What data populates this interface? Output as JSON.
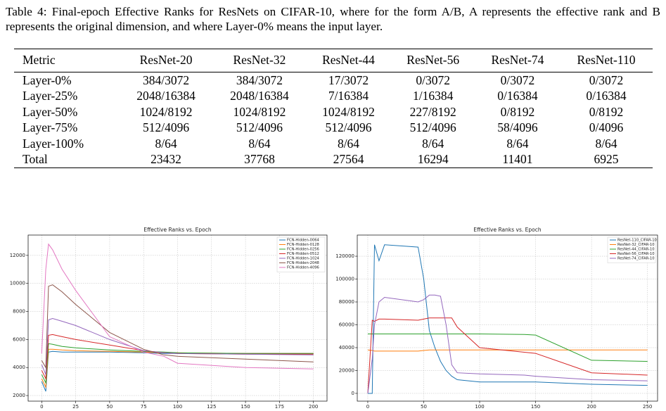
{
  "caption": "Table 4: Final-epoch Effective Ranks for ResNets on CIFAR-10, where for the form A/B, A represents the effective rank and B represents the original dimension, and where Layer-0% means the input layer.",
  "table": {
    "header": [
      "Metric",
      "ResNet-20",
      "ResNet-32",
      "ResNet-44",
      "ResNet-56",
      "ResNet-74",
      "ResNet-110"
    ],
    "rows": [
      [
        "Layer-0%",
        "384/3072",
        "384/3072",
        "17/3072",
        "0/3072",
        "0/3072",
        "0/3072"
      ],
      [
        "Layer-25%",
        "2048/16384",
        "2048/16384",
        "7/16384",
        "1/16384",
        "0/16384",
        "0/16384"
      ],
      [
        "Layer-50%",
        "1024/8192",
        "1024/8192",
        "1024/8192",
        "227/8192",
        "0/8192",
        "0/8192"
      ],
      [
        "Layer-75%",
        "512/4096",
        "512/4096",
        "512/4096",
        "512/4096",
        "58/4096",
        "0/4096"
      ],
      [
        "Layer-100%",
        "8/64",
        "8/64",
        "8/64",
        "8/64",
        "8/64",
        "8/64"
      ],
      [
        "Total",
        "23432",
        "37768",
        "27564",
        "16294",
        "11401",
        "6925"
      ]
    ]
  },
  "chart_data": [
    {
      "type": "line",
      "title": "Effective Ranks vs. Epoch",
      "x": [
        0,
        3,
        5,
        8,
        15,
        25,
        50,
        75,
        90,
        100,
        150,
        200
      ],
      "series": [
        {
          "name": "FCN-Hidden-0064",
          "color": "#1f77b4",
          "values": [
            3000,
            2300,
            5100,
            5150,
            5100,
            5100,
            5100,
            5050,
            5000,
            5000,
            5000,
            5000
          ]
        },
        {
          "name": "FCN-Hidden-0128",
          "color": "#ff7f0e",
          "values": [
            3200,
            2600,
            5300,
            5300,
            5250,
            5200,
            5150,
            5100,
            5050,
            5050,
            5000,
            5000
          ]
        },
        {
          "name": "FCN-Hidden-0256",
          "color": "#2ca02c",
          "values": [
            3500,
            2900,
            5700,
            5650,
            5500,
            5400,
            5250,
            5150,
            5100,
            5050,
            5000,
            5000
          ]
        },
        {
          "name": "FCN-Hidden-0512",
          "color": "#d62728",
          "values": [
            3800,
            3200,
            6300,
            6350,
            6200,
            6000,
            5600,
            5200,
            5050,
            5000,
            4950,
            4950
          ]
        },
        {
          "name": "FCN-Hidden-1024",
          "color": "#9467bd",
          "values": [
            4200,
            3500,
            7400,
            7500,
            7300,
            7000,
            6000,
            5200,
            5050,
            5000,
            4950,
            4900
          ]
        },
        {
          "name": "FCN-Hidden-2048",
          "color": "#8c564b",
          "values": [
            4500,
            4000,
            9800,
            9900,
            9400,
            8500,
            6500,
            5300,
            4900,
            4800,
            4600,
            4400
          ]
        },
        {
          "name": "FCN-Hidden-4096",
          "color": "#e377c2",
          "values": [
            5000,
            11000,
            12800,
            12400,
            11000,
            9500,
            6200,
            5100,
            4800,
            4300,
            4000,
            3900
          ]
        }
      ],
      "xlim": [
        -10,
        210
      ],
      "ylim": [
        1600,
        13450
      ],
      "xticks": [
        0,
        25,
        50,
        75,
        100,
        125,
        150,
        175,
        200
      ],
      "yticks": [
        2000,
        4000,
        6000,
        8000,
        10000,
        12000
      ],
      "grid": true,
      "legend": "upper right"
    },
    {
      "type": "line",
      "title": "Effective Ranks vs. Epoch",
      "x": [
        0,
        4,
        6,
        10,
        15,
        45,
        50,
        55,
        60,
        65,
        70,
        75,
        80,
        100,
        140,
        150,
        200,
        250
      ],
      "series": [
        {
          "name": "ResNet-110_CIFAR-10",
          "color": "#1f77b4",
          "values": [
            0,
            0,
            130000,
            116000,
            130000,
            128000,
            100000,
            55000,
            40000,
            28000,
            20000,
            15000,
            12000,
            10000,
            10000,
            10000,
            8000,
            7000
          ]
        },
        {
          "name": "ResNet-32_CIFAR-10",
          "color": "#ff7f0e",
          "values": [
            38000,
            37500,
            37000,
            37000,
            37000,
            37000,
            37500,
            38000,
            38000,
            38000,
            38000,
            38000,
            38000,
            38000,
            38000,
            38000,
            38000,
            38000
          ]
        },
        {
          "name": "ResNet-44_CIFAR-10",
          "color": "#2ca02c",
          "values": [
            52000,
            52000,
            52000,
            52000,
            52000,
            52000,
            52000,
            52000,
            52000,
            52000,
            52000,
            52000,
            52000,
            52000,
            51500,
            51000,
            29000,
            28000
          ]
        },
        {
          "name": "ResNet-56_CIFAR-10",
          "color": "#d62728",
          "values": [
            0,
            64000,
            63000,
            65000,
            65000,
            64000,
            65000,
            66000,
            66000,
            66000,
            66000,
            66000,
            58000,
            40000,
            36000,
            35000,
            18000,
            16000
          ]
        },
        {
          "name": "ResNet-74_CIFAR-10",
          "color": "#9467bd",
          "values": [
            0,
            30000,
            60000,
            80000,
            84000,
            80000,
            82000,
            86000,
            86000,
            85000,
            60000,
            25000,
            18000,
            17000,
            16000,
            15000,
            12000,
            11000
          ]
        }
      ],
      "xlim": [
        -9.4,
        259
      ],
      "ylim": [
        -6800,
        138500
      ],
      "xticks": [
        0,
        50,
        100,
        150,
        200,
        250
      ],
      "yticks": [
        0,
        20000,
        40000,
        60000,
        80000,
        100000,
        120000
      ],
      "grid": true,
      "legend": "upper right"
    }
  ]
}
